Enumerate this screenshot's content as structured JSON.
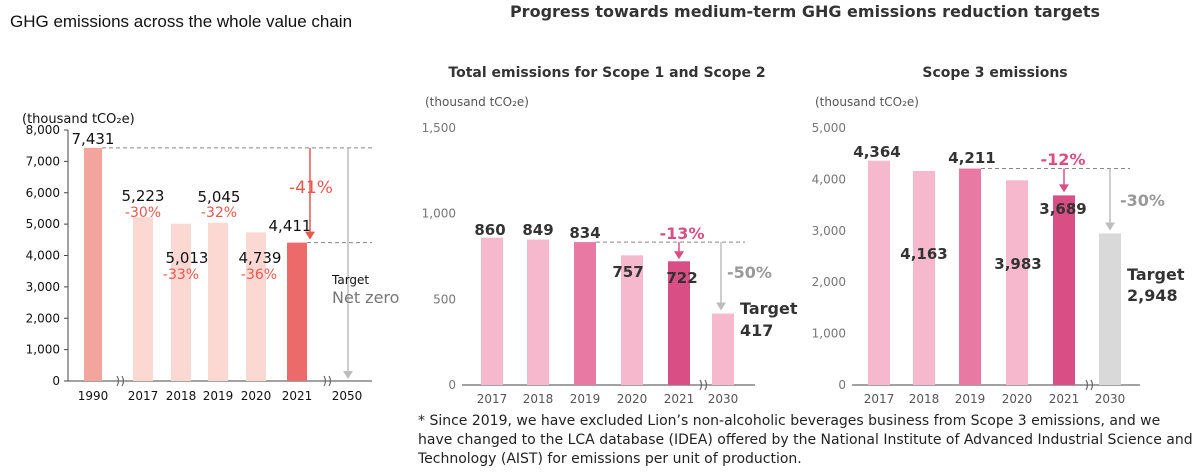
{
  "headline": "Progress towards medium-term GHG emissions reduction targets",
  "chart_data": [
    {
      "type": "bar",
      "title": "GHG emissions across the whole value chain",
      "ylabel": "(thousand tCO₂e)",
      "ylim": [
        0,
        8000
      ],
      "yticks": [
        "0",
        "1,000",
        "2,000",
        "3,000",
        "4,000",
        "5,000",
        "6,000",
        "7,000",
        "8,000"
      ],
      "categories": [
        "1990",
        "2017",
        "2018",
        "2019",
        "2020",
        "2021",
        "2050"
      ],
      "values": [
        7431,
        5223,
        5013,
        5045,
        4739,
        4411,
        0
      ],
      "value_labels": [
        "7,431",
        "5,223",
        "5,013",
        "5,045",
        "4,739",
        "4,411",
        ""
      ],
      "change_labels": [
        "",
        "-30%",
        "-33%",
        "-32%",
        "-36%",
        "",
        ""
      ],
      "reduction_label": "-41%",
      "target_label": "Target",
      "target_value": "Net zero",
      "colors": {
        "base": "#f2a59c",
        "light": "#fcd8d2",
        "current": "#ec6a6a",
        "accent": "#e8584f"
      }
    },
    {
      "type": "bar",
      "title": "Total emissions for Scope 1 and Scope 2",
      "ylabel": "(thousand tCO₂e)",
      "ylim": [
        0,
        1500
      ],
      "yticks": [
        "0",
        "500",
        "1,000",
        "1,500"
      ],
      "categories": [
        "2017",
        "2018",
        "2019",
        "2020",
        "2021",
        "2030"
      ],
      "values": [
        860,
        849,
        834,
        757,
        722,
        417
      ],
      "value_labels": [
        "860",
        "849",
        "834",
        "757",
        "722",
        ""
      ],
      "reduction_label": "-13%",
      "target_reduction_label": "-50%",
      "target_label": "Target",
      "target_value": "417",
      "colors": {
        "light": "#f5b8cc",
        "base": "#e879a3",
        "current": "#d94f85",
        "target": "#f5b8cc"
      }
    },
    {
      "type": "bar",
      "title": "Scope 3 emissions",
      "ylabel": "(thousand tCO₂e)",
      "ylim": [
        0,
        5000
      ],
      "yticks": [
        "0",
        "1,000",
        "2,000",
        "3,000",
        "4,000",
        "5,000"
      ],
      "categories": [
        "2017",
        "2018",
        "2019",
        "2020",
        "2021",
        "2030"
      ],
      "values": [
        4364,
        4163,
        4211,
        3983,
        3689,
        2948
      ],
      "value_labels": [
        "4,364",
        "4,163",
        "4,211",
        "3,983",
        "3,689",
        ""
      ],
      "reduction_label": "-12%",
      "target_reduction_label": "-30%",
      "target_label": "Target",
      "target_value": "2,948",
      "colors": {
        "light": "#f5b8cc",
        "base": "#e879a3",
        "current": "#d94f85",
        "target": "#d9d9d9"
      }
    }
  ],
  "footnote": "* Since 2019, we have excluded Lion’s non-alcoholic beverages business from Scope 3 emissions, and we have changed to the LCA database (IDEA) offered by the National Institute of Advanced Industrial Science and Technology (AIST) for emissions per unit of production."
}
